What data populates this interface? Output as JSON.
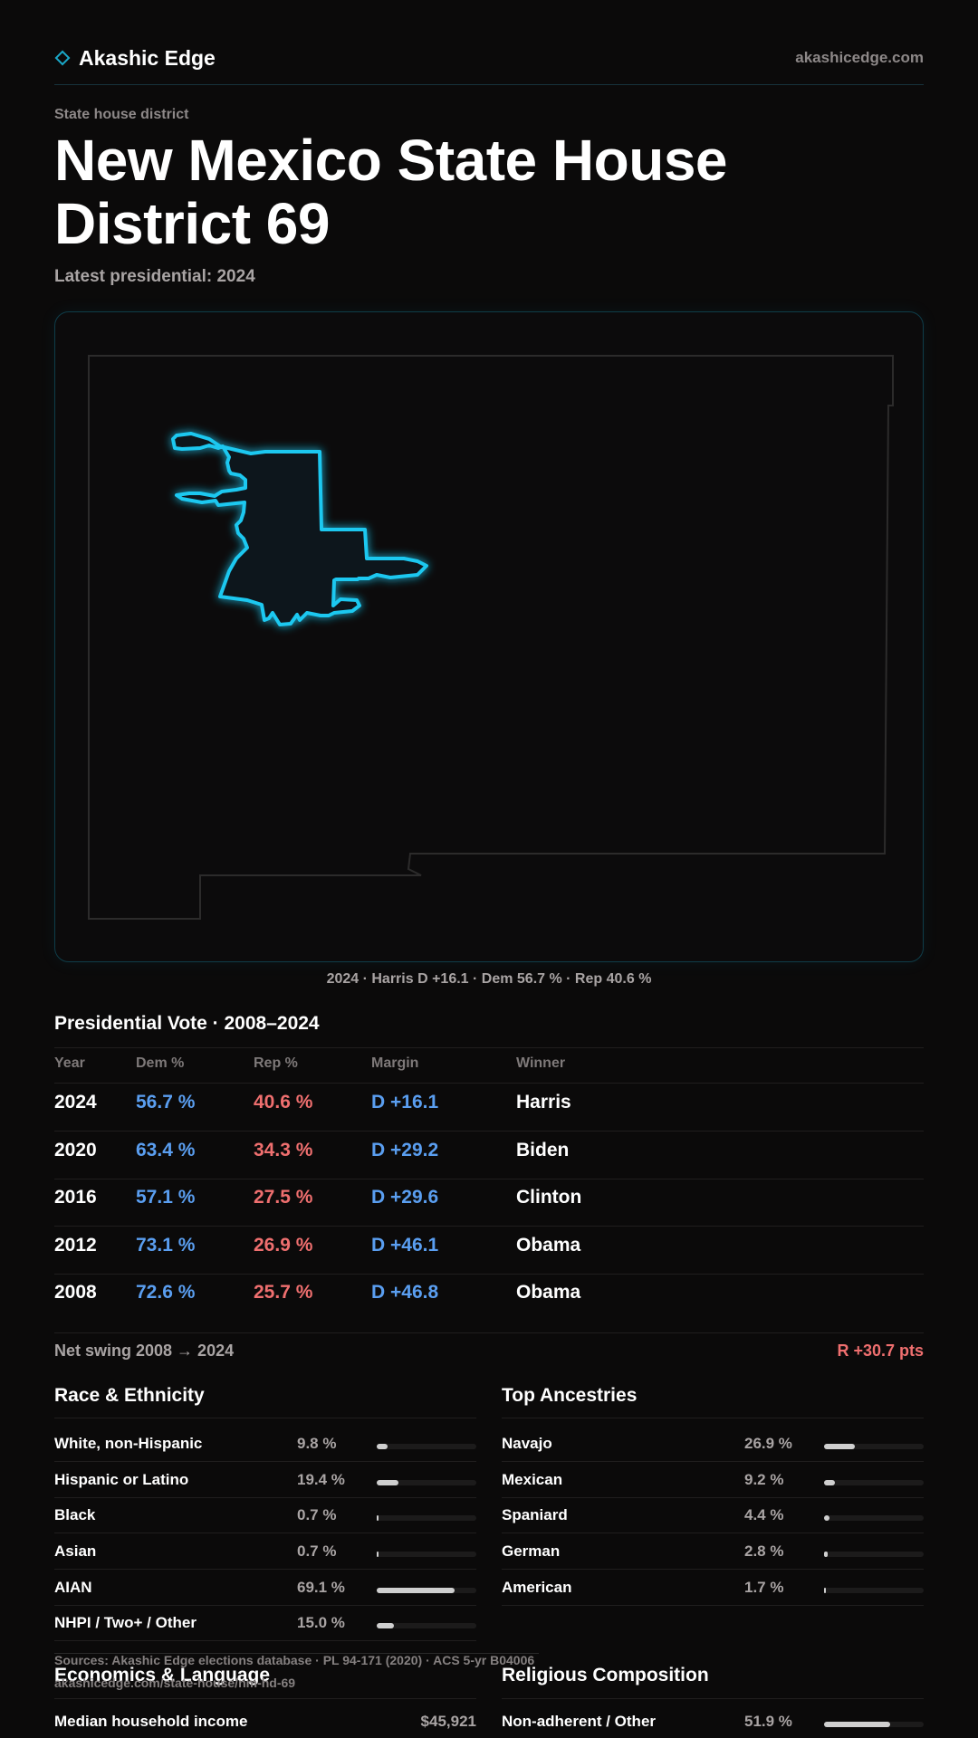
{
  "brand": {
    "name": "Akashic Edge",
    "url": "akashicedge.com"
  },
  "page": {
    "eyebrow": "State house district",
    "title": "New Mexico State House District 69",
    "latest": "Latest presidential: 2024"
  },
  "map": {
    "caption": "2024 · Harris D +16.1 · Dem 56.7 % · Rep 40.6 %",
    "accent_color": "#1ec8f0"
  },
  "presidential": {
    "title": "Presidential Vote · 2008–2024",
    "headers": {
      "year": "Year",
      "dem": "Dem %",
      "rep": "Rep %",
      "margin": "Margin",
      "winner": "Winner"
    },
    "rows": [
      {
        "year": "2024",
        "dem": "56.7 %",
        "rep": "40.6 %",
        "margin": "D +16.1",
        "winner": "Harris"
      },
      {
        "year": "2020",
        "dem": "63.4 %",
        "rep": "34.3 %",
        "margin": "D +29.2",
        "winner": "Biden"
      },
      {
        "year": "2016",
        "dem": "57.1 %",
        "rep": "27.5 %",
        "margin": "D +29.6",
        "winner": "Clinton"
      },
      {
        "year": "2012",
        "dem": "73.1 %",
        "rep": "26.9 %",
        "margin": "D +46.1",
        "winner": "Obama"
      },
      {
        "year": "2008",
        "dem": "72.6 %",
        "rep": "25.7 %",
        "margin": "D +46.8",
        "winner": "Obama"
      }
    ],
    "swing_label": "Net swing 2008 → 2024",
    "swing_value": "R +30.7 pts",
    "dem_color": "#5a9ef0",
    "rep_color": "#ef6f6f"
  },
  "race": {
    "title": "Race & Ethnicity",
    "rows": [
      {
        "label": "White, non-Hispanic",
        "pct": "9.8 %",
        "value": 9.8
      },
      {
        "label": "Hispanic or Latino",
        "pct": "19.4 %",
        "value": 19.4
      },
      {
        "label": "Black",
        "pct": "0.7 %",
        "value": 0.7
      },
      {
        "label": "Asian",
        "pct": "0.7 %",
        "value": 0.7
      },
      {
        "label": "AIAN",
        "pct": "69.1 %",
        "value": 69.1
      },
      {
        "label": "NHPI / Two+ / Other",
        "pct": "15.0 %",
        "value": 15.0
      }
    ]
  },
  "ancestry": {
    "title": "Top Ancestries",
    "rows": [
      {
        "label": "Navajo",
        "pct": "26.9 %",
        "value": 26.9
      },
      {
        "label": "Mexican",
        "pct": "9.2 %",
        "value": 9.2
      },
      {
        "label": "Spaniard",
        "pct": "4.4 %",
        "value": 4.4
      },
      {
        "label": "German",
        "pct": "2.8 %",
        "value": 2.8
      },
      {
        "label": "American",
        "pct": "1.7 %",
        "value": 1.7
      }
    ]
  },
  "sources": {
    "line1": "Sources: Akashic Edge elections database · PL 94-171 (2020) · ACS 5-yr B04006",
    "line2": "akashicedge.com/state-house/nm-hd-69"
  },
  "economics": {
    "title": "Economics & Language",
    "rows": [
      {
        "label": "Median household income",
        "value": "$45,921"
      }
    ]
  },
  "religion": {
    "title": "Religious Composition",
    "rows": [
      {
        "label": "Non-adherent / Other",
        "pct": "51.9 %",
        "value": 51.9
      }
    ]
  }
}
